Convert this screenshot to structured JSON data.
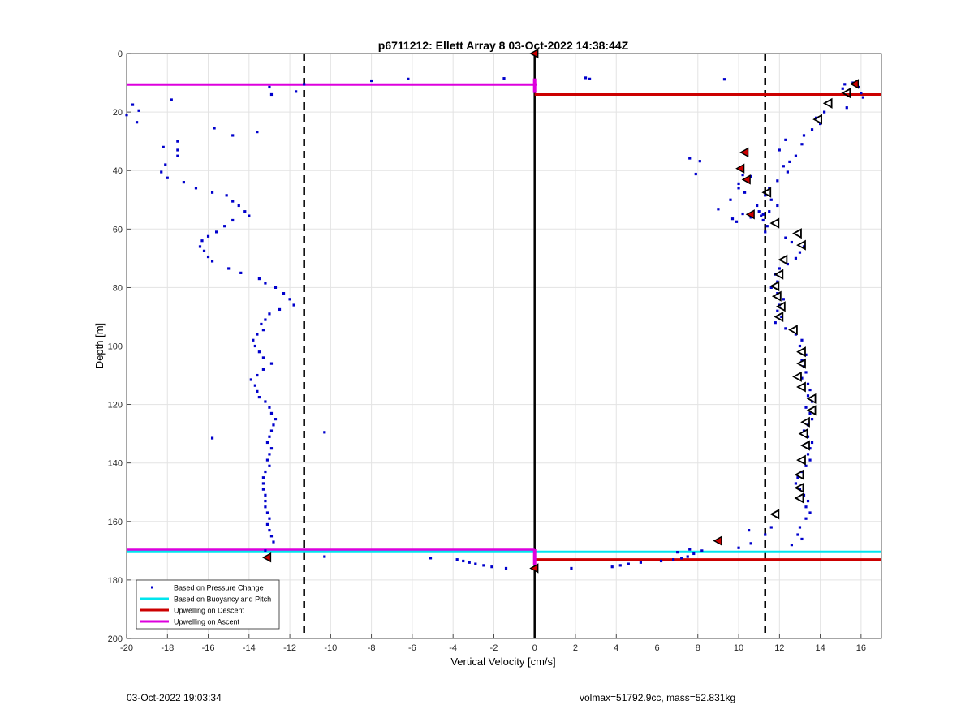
{
  "chart_data": {
    "type": "scatter",
    "title": "p6711212: Ellett Array 8 03-Oct-2022 14:38:44Z",
    "xlabel": "Vertical Velocity [cm/s]",
    "ylabel": "Depth [m]",
    "xlim": [
      -20,
      17
    ],
    "ylim": [
      0,
      200
    ],
    "y_reversed": true,
    "grid": true,
    "xticks": [
      -20,
      -18,
      -16,
      -14,
      -12,
      -10,
      -8,
      -6,
      -4,
      -2,
      0,
      2,
      4,
      6,
      8,
      10,
      12,
      14,
      16
    ],
    "yticks": [
      0,
      20,
      40,
      60,
      80,
      100,
      120,
      140,
      160,
      180,
      200
    ],
    "legend_position": "bottom-left",
    "legend": [
      {
        "label": "Based on Pressure Change",
        "color": "#0000cc",
        "style": "dot"
      },
      {
        "label": "Based on Buoyancy and Pitch",
        "color": "#00e5ee",
        "style": "line"
      },
      {
        "label": "Upwelling on Descent",
        "color": "#cc0000",
        "style": "line"
      },
      {
        "label": "Upwelling on Ascent",
        "color": "#dd00dd",
        "style": "line"
      }
    ],
    "threshold_lines": [
      -11.3,
      11.3
    ],
    "zero_line": 0,
    "pressure_change_points": [
      [
        -20,
        21
      ],
      [
        -19.5,
        23.5
      ],
      [
        -19.4,
        19.5
      ],
      [
        -19.7,
        17.5
      ],
      [
        -17.8,
        15.8
      ],
      [
        -13.0,
        11.5
      ],
      [
        -12.9,
        14.0
      ],
      [
        -11.3,
        10.5
      ],
      [
        -11.7,
        13.0
      ],
      [
        -8.0,
        9.3
      ],
      [
        -6.2,
        8.7
      ],
      [
        -1.5,
        8.5
      ],
      [
        2.5,
        8.3
      ],
      [
        2.7,
        8.7
      ],
      [
        9.3,
        8.8
      ],
      [
        -15.7,
        25.5
      ],
      [
        -14.8,
        28.0
      ],
      [
        -13.6,
        26.8
      ],
      [
        -17.5,
        30.0
      ],
      [
        -17.5,
        33.0
      ],
      [
        -18.2,
        32.0
      ],
      [
        -17.5,
        35.0
      ],
      [
        -18.1,
        38.0
      ],
      [
        -18.3,
        40.5
      ],
      [
        -18.0,
        42.5
      ],
      [
        -17.2,
        44.0
      ],
      [
        -16.6,
        46.0
      ],
      [
        -15.8,
        47.5
      ],
      [
        -15.1,
        48.5
      ],
      [
        -14.8,
        50.5
      ],
      [
        -14.5,
        52.0
      ],
      [
        -14.2,
        54.0
      ],
      [
        -14.0,
        55.5
      ],
      [
        -14.8,
        57.0
      ],
      [
        -15.2,
        59.0
      ],
      [
        -15.6,
        61.0
      ],
      [
        -16.0,
        62.5
      ],
      [
        -16.3,
        64.0
      ],
      [
        -16.4,
        66.0
      ],
      [
        -16.2,
        67.5
      ],
      [
        -16.0,
        69.5
      ],
      [
        -15.8,
        71.0
      ],
      [
        -15.0,
        73.5
      ],
      [
        -14.4,
        75.0
      ],
      [
        -13.5,
        77.0
      ],
      [
        -13.2,
        78.5
      ],
      [
        -12.7,
        80.0
      ],
      [
        -12.3,
        82.0
      ],
      [
        -12.0,
        84.0
      ],
      [
        -11.8,
        86.0
      ],
      [
        -12.5,
        87.5
      ],
      [
        -13.0,
        89.0
      ],
      [
        -13.2,
        91.0
      ],
      [
        -13.4,
        92.5
      ],
      [
        -13.3,
        94.5
      ],
      [
        -13.6,
        96.0
      ],
      [
        -13.8,
        98.0
      ],
      [
        -13.7,
        100.0
      ],
      [
        -13.5,
        102.0
      ],
      [
        -13.3,
        104.0
      ],
      [
        -12.9,
        106.0
      ],
      [
        -13.3,
        108.0
      ],
      [
        -13.6,
        110.0
      ],
      [
        -13.9,
        111.5
      ],
      [
        -13.7,
        113.5
      ],
      [
        -13.6,
        115.5
      ],
      [
        -13.5,
        117.5
      ],
      [
        -13.2,
        119.0
      ],
      [
        -13.0,
        121.0
      ],
      [
        -12.9,
        123.0
      ],
      [
        -12.7,
        125.0
      ],
      [
        -12.8,
        127.0
      ],
      [
        -12.9,
        129.0
      ],
      [
        -13.0,
        131.0
      ],
      [
        -13.1,
        133.0
      ],
      [
        -12.9,
        135.0
      ],
      [
        -13.0,
        137.0
      ],
      [
        -13.1,
        139.0
      ],
      [
        -13.0,
        141.0
      ],
      [
        -13.2,
        143.0
      ],
      [
        -13.3,
        145.0
      ],
      [
        -13.3,
        147.0
      ],
      [
        -13.3,
        149.0
      ],
      [
        -13.2,
        151.0
      ],
      [
        -13.2,
        153.0
      ],
      [
        -13.2,
        155.0
      ],
      [
        -13.1,
        157.0
      ],
      [
        -13.0,
        159.0
      ],
      [
        -13.1,
        161.0
      ],
      [
        -13.0,
        163.0
      ],
      [
        -12.9,
        165.0
      ],
      [
        -12.8,
        167.0
      ],
      [
        -13.2,
        170.0
      ],
      [
        -15.8,
        131.5
      ],
      [
        -10.3,
        129.5
      ],
      [
        -10.3,
        172.0
      ],
      [
        -5.1,
        172.5
      ],
      [
        -3.8,
        173.0
      ],
      [
        -3.5,
        173.5
      ],
      [
        -3.2,
        174.0
      ],
      [
        -2.9,
        174.5
      ],
      [
        -2.5,
        175.0
      ],
      [
        -2.1,
        175.5
      ],
      [
        -1.4,
        176.0
      ],
      [
        1.8,
        176.0
      ],
      [
        3.8,
        175.5
      ],
      [
        4.2,
        175.0
      ],
      [
        4.6,
        174.5
      ],
      [
        5.2,
        174.0
      ],
      [
        6.2,
        173.5
      ],
      [
        6.8,
        173.0
      ],
      [
        7.2,
        172.5
      ],
      [
        7.5,
        172.0
      ],
      [
        7.8,
        171.0
      ],
      [
        7.0,
        170.5
      ],
      [
        7.6,
        169.5
      ],
      [
        8.2,
        170.0
      ],
      [
        9.0,
        167.0
      ],
      [
        10.0,
        169.0
      ],
      [
        10.6,
        167.5
      ],
      [
        10.5,
        163.0
      ],
      [
        11.3,
        164.5
      ],
      [
        11.6,
        162.0
      ],
      [
        15.2,
        10.5
      ],
      [
        15.6,
        10.0
      ],
      [
        15.9,
        11.5
      ],
      [
        16.0,
        13.5
      ],
      [
        15.1,
        12.0
      ],
      [
        16.1,
        15.0
      ],
      [
        15.3,
        18.5
      ],
      [
        14.2,
        20.0
      ],
      [
        13.8,
        22.0
      ],
      [
        14.0,
        24.0
      ],
      [
        13.6,
        26.0
      ],
      [
        13.2,
        28.0
      ],
      [
        12.3,
        29.5
      ],
      [
        13.1,
        31.0
      ],
      [
        12.0,
        33.0
      ],
      [
        12.8,
        35.0
      ],
      [
        12.5,
        37.0
      ],
      [
        12.2,
        38.5
      ],
      [
        12.4,
        40.5
      ],
      [
        11.9,
        43.5
      ],
      [
        11.5,
        46.0
      ],
      [
        11.3,
        48.5
      ],
      [
        11.6,
        50.0
      ],
      [
        11.9,
        52.0
      ],
      [
        11.5,
        54.0
      ],
      [
        11.1,
        55.5
      ],
      [
        11.2,
        57.0
      ],
      [
        11.4,
        59.0
      ],
      [
        11.3,
        61.0
      ],
      [
        12.3,
        63.0
      ],
      [
        12.6,
        64.5
      ],
      [
        13.2,
        66.0
      ],
      [
        13.0,
        68.0
      ],
      [
        12.8,
        70.0
      ],
      [
        12.4,
        72.0
      ],
      [
        12.0,
        73.5
      ],
      [
        11.8,
        75.5
      ],
      [
        11.9,
        78.0
      ],
      [
        11.6,
        80.0
      ],
      [
        11.9,
        82.0
      ],
      [
        12.2,
        84.0
      ],
      [
        12.0,
        86.0
      ],
      [
        11.9,
        88.0
      ],
      [
        12.1,
        90.0
      ],
      [
        11.8,
        92.0
      ],
      [
        12.3,
        94.0
      ],
      [
        12.8,
        96.0
      ],
      [
        13.1,
        98.0
      ],
      [
        13.0,
        100.0
      ],
      [
        13.3,
        103.0
      ],
      [
        13.1,
        105.0
      ],
      [
        13.2,
        107.0
      ],
      [
        13.3,
        109.0
      ],
      [
        13.1,
        111.0
      ],
      [
        13.4,
        113.0
      ],
      [
        13.5,
        115.0
      ],
      [
        13.4,
        117.0
      ],
      [
        13.6,
        119.0
      ],
      [
        13.3,
        121.0
      ],
      [
        13.5,
        123.0
      ],
      [
        13.6,
        125.0
      ],
      [
        13.4,
        127.0
      ],
      [
        13.2,
        129.0
      ],
      [
        13.4,
        131.0
      ],
      [
        13.6,
        133.0
      ],
      [
        13.5,
        135.0
      ],
      [
        13.4,
        137.0
      ],
      [
        13.5,
        139.0
      ],
      [
        13.3,
        141.0
      ],
      [
        13.1,
        143.0
      ],
      [
        12.9,
        145.0
      ],
      [
        12.8,
        147.0
      ],
      [
        13.0,
        149.0
      ],
      [
        13.2,
        151.0
      ],
      [
        13.4,
        153.0
      ],
      [
        13.3,
        155.0
      ],
      [
        13.5,
        157.0
      ],
      [
        13.3,
        159.0
      ],
      [
        13.0,
        162.0
      ],
      [
        12.9,
        164.5
      ],
      [
        13.1,
        166.0
      ],
      [
        12.6,
        168.0
      ],
      [
        7.6,
        35.8
      ],
      [
        8.1,
        36.8
      ],
      [
        7.9,
        41.2
      ],
      [
        10.2,
        41.5
      ],
      [
        10.6,
        42.0
      ],
      [
        10.0,
        46.0
      ],
      [
        10.3,
        47.5
      ],
      [
        10.0,
        44.5
      ],
      [
        9.6,
        50.0
      ],
      [
        10.9,
        52.0
      ],
      [
        9.0,
        53.2
      ],
      [
        9.7,
        56.5
      ],
      [
        10.6,
        56.0
      ],
      [
        11.2,
        55.0
      ],
      [
        11.0,
        54.0
      ],
      [
        9.9,
        57.5
      ],
      [
        10.2,
        54.8
      ]
    ],
    "red_markers": [
      [
        -13.1,
        172.3
      ],
      [
        15.7,
        10.4
      ],
      [
        10.3,
        33.8
      ],
      [
        10.1,
        39.3
      ],
      [
        10.4,
        43.1
      ],
      [
        10.6,
        55.0
      ],
      [
        9.0,
        166.6
      ],
      [
        0.0,
        176.0
      ],
      [
        0.0,
        0.0
      ]
    ],
    "triangle_markers": [
      [
        15.3,
        13.5
      ],
      [
        14.4,
        17.0
      ],
      [
        13.9,
        22.5
      ],
      [
        11.4,
        47.5
      ],
      [
        11.8,
        58.0
      ],
      [
        12.9,
        61.5
      ],
      [
        13.1,
        65.5
      ],
      [
        12.2,
        70.5
      ],
      [
        12.0,
        75.5
      ],
      [
        11.8,
        79.5
      ],
      [
        11.9,
        83.0
      ],
      [
        12.1,
        86.5
      ],
      [
        12.0,
        90.0
      ],
      [
        12.7,
        94.5
      ],
      [
        13.1,
        102.0
      ],
      [
        13.1,
        106.0
      ],
      [
        12.9,
        110.5
      ],
      [
        13.1,
        114.0
      ],
      [
        13.6,
        118.0
      ],
      [
        13.6,
        122.0
      ],
      [
        13.3,
        126.0
      ],
      [
        13.2,
        130.0
      ],
      [
        13.3,
        134.0
      ],
      [
        13.1,
        139.0
      ],
      [
        13.0,
        144.0
      ],
      [
        13.0,
        148.5
      ],
      [
        13.0,
        152.0
      ],
      [
        11.8,
        157.5
      ]
    ],
    "horizontal_lines": [
      {
        "series": "Upwelling on Ascent",
        "depth": 10.6,
        "x_from": -20,
        "x_to": 0
      },
      {
        "series": "Upwelling on Ascent",
        "depth": 169.7,
        "x_from": -20,
        "x_to": 0
      },
      {
        "series": "Upwelling on Descent",
        "depth": 14.0,
        "x_from": 0,
        "x_to": 17
      },
      {
        "series": "Upwelling on Descent",
        "depth": 173.0,
        "x_from": 0,
        "x_to": 17
      },
      {
        "series": "Based on Buoyancy and Pitch",
        "depth": 170.4,
        "x_from": -20,
        "x_to": 17
      },
      {
        "series": "Upwelling on Ascent",
        "depth": 10.6,
        "x_from": 0,
        "x_to": 0.1
      }
    ],
    "vertical_segments": [
      {
        "series": "Upwelling on Ascent",
        "x": 0,
        "y_from": 8.5,
        "y_to": 13.5
      },
      {
        "series": "Upwelling on Ascent",
        "x": 0,
        "y_from": 169.5,
        "y_to": 175.0
      }
    ]
  },
  "footer": {
    "left": "03-Oct-2022 19:03:34",
    "right": "volmax=51792.9cc, mass=52.831kg"
  }
}
